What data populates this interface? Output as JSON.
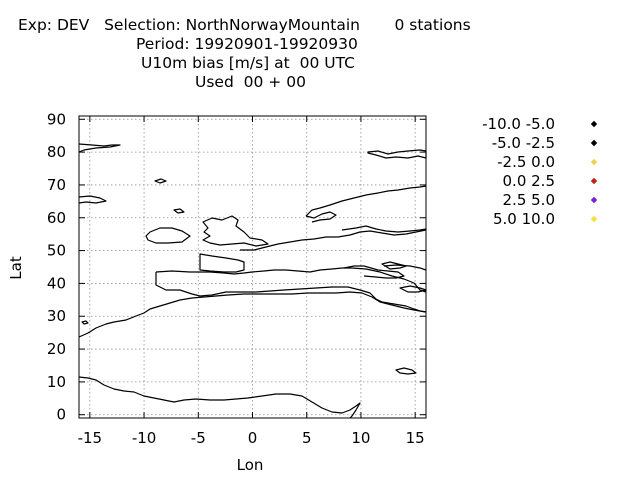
{
  "header": {
    "line1": "Exp: DEV   Selection: NorthNorwayMountain       0 stations",
    "line2": "Period: 19920901-19920930",
    "line3": "U10m bias [m/s] at  00 UTC",
    "line4": "Used  00 + 00"
  },
  "map": {
    "xlabel": "Lon",
    "ylabel": "Lat",
    "xlim": [
      -16,
      16
    ],
    "ylim": [
      -1,
      91
    ],
    "x_ticks": [
      -15,
      -10,
      -5,
      0,
      5,
      10,
      15
    ],
    "y_ticks": [
      0,
      10,
      20,
      30,
      40,
      50,
      60,
      70,
      80,
      90
    ],
    "grid": true
  },
  "legend": {
    "items": [
      {
        "label": "-10.0 -5.0",
        "color": "#000000"
      },
      {
        "label": "-5.0 -2.5",
        "color": "#000000"
      },
      {
        "label": "-2.5 0.0",
        "color": "#f0d050"
      },
      {
        "label": "0.0 2.5",
        "color": "#c02020"
      },
      {
        "label": "2.5 5.0",
        "color": "#7a20d8"
      },
      {
        "label": "5.0 10.0",
        "color": "#f0e040"
      }
    ]
  }
}
